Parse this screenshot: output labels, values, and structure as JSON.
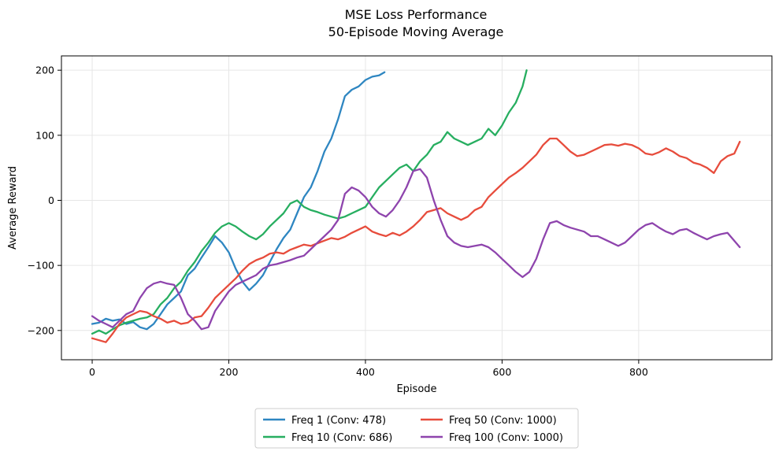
{
  "chart_data": {
    "type": "line",
    "title": "MSE Loss Performance",
    "subtitle": "50-Episode Moving Average",
    "xlabel": "Episode",
    "ylabel": "Average Reward",
    "xlim": [
      -45,
      995
    ],
    "ylim": [
      -245,
      222
    ],
    "xticks": [
      0,
      200,
      400,
      600,
      800
    ],
    "yticks": [
      -200,
      -100,
      0,
      100,
      200
    ],
    "xtick_labels": [
      "0",
      "200",
      "400",
      "600",
      "800"
    ],
    "ytick_labels": [
      "−200",
      "−100",
      "0",
      "100",
      "200"
    ],
    "grid": true,
    "legend_position": "bottom-center",
    "series": [
      {
        "name": "Freq 1 (Conv: 478)",
        "color": "#2e86c1",
        "points": [
          [
            0,
            -190
          ],
          [
            10,
            -188
          ],
          [
            20,
            -182
          ],
          [
            30,
            -185
          ],
          [
            40,
            -183
          ],
          [
            50,
            -190
          ],
          [
            60,
            -187
          ],
          [
            70,
            -195
          ],
          [
            80,
            -198
          ],
          [
            90,
            -190
          ],
          [
            100,
            -175
          ],
          [
            110,
            -160
          ],
          [
            120,
            -150
          ],
          [
            130,
            -140
          ],
          [
            140,
            -115
          ],
          [
            150,
            -105
          ],
          [
            160,
            -88
          ],
          [
            170,
            -72
          ],
          [
            180,
            -55
          ],
          [
            190,
            -65
          ],
          [
            200,
            -80
          ],
          [
            210,
            -105
          ],
          [
            220,
            -125
          ],
          [
            230,
            -138
          ],
          [
            240,
            -128
          ],
          [
            250,
            -115
          ],
          [
            260,
            -95
          ],
          [
            270,
            -75
          ],
          [
            280,
            -58
          ],
          [
            290,
            -45
          ],
          [
            300,
            -20
          ],
          [
            310,
            5
          ],
          [
            320,
            20
          ],
          [
            330,
            45
          ],
          [
            340,
            75
          ],
          [
            350,
            95
          ],
          [
            360,
            125
          ],
          [
            370,
            160
          ],
          [
            380,
            170
          ],
          [
            390,
            175
          ],
          [
            400,
            185
          ],
          [
            410,
            190
          ],
          [
            420,
            192
          ],
          [
            428,
            197
          ]
        ]
      },
      {
        "name": "Freq 10 (Conv: 686)",
        "color": "#27ae60",
        "points": [
          [
            0,
            -205
          ],
          [
            10,
            -200
          ],
          [
            20,
            -205
          ],
          [
            30,
            -198
          ],
          [
            40,
            -192
          ],
          [
            50,
            -188
          ],
          [
            60,
            -185
          ],
          [
            70,
            -182
          ],
          [
            80,
            -180
          ],
          [
            90,
            -175
          ],
          [
            100,
            -160
          ],
          [
            110,
            -150
          ],
          [
            120,
            -135
          ],
          [
            130,
            -125
          ],
          [
            140,
            -108
          ],
          [
            150,
            -95
          ],
          [
            160,
            -78
          ],
          [
            170,
            -65
          ],
          [
            180,
            -50
          ],
          [
            190,
            -40
          ],
          [
            200,
            -35
          ],
          [
            210,
            -40
          ],
          [
            220,
            -48
          ],
          [
            230,
            -55
          ],
          [
            240,
            -60
          ],
          [
            250,
            -52
          ],
          [
            260,
            -40
          ],
          [
            270,
            -30
          ],
          [
            280,
            -20
          ],
          [
            290,
            -5
          ],
          [
            300,
            0
          ],
          [
            310,
            -10
          ],
          [
            320,
            -15
          ],
          [
            330,
            -18
          ],
          [
            340,
            -22
          ],
          [
            350,
            -25
          ],
          [
            360,
            -28
          ],
          [
            370,
            -25
          ],
          [
            380,
            -20
          ],
          [
            390,
            -15
          ],
          [
            400,
            -10
          ],
          [
            410,
            5
          ],
          [
            420,
            20
          ],
          [
            430,
            30
          ],
          [
            440,
            40
          ],
          [
            450,
            50
          ],
          [
            460,
            55
          ],
          [
            470,
            45
          ],
          [
            480,
            60
          ],
          [
            490,
            70
          ],
          [
            500,
            85
          ],
          [
            510,
            90
          ],
          [
            520,
            105
          ],
          [
            530,
            95
          ],
          [
            540,
            90
          ],
          [
            550,
            85
          ],
          [
            560,
            90
          ],
          [
            570,
            95
          ],
          [
            580,
            110
          ],
          [
            590,
            100
          ],
          [
            600,
            115
          ],
          [
            610,
            135
          ],
          [
            620,
            150
          ],
          [
            630,
            175
          ],
          [
            636,
            200
          ]
        ]
      },
      {
        "name": "Freq 50 (Conv: 1000)",
        "color": "#e74c3c",
        "points": [
          [
            0,
            -212
          ],
          [
            10,
            -215
          ],
          [
            20,
            -218
          ],
          [
            30,
            -205
          ],
          [
            40,
            -190
          ],
          [
            50,
            -180
          ],
          [
            60,
            -175
          ],
          [
            70,
            -170
          ],
          [
            80,
            -172
          ],
          [
            90,
            -178
          ],
          [
            100,
            -182
          ],
          [
            110,
            -188
          ],
          [
            120,
            -185
          ],
          [
            130,
            -190
          ],
          [
            140,
            -188
          ],
          [
            150,
            -180
          ],
          [
            160,
            -178
          ],
          [
            170,
            -165
          ],
          [
            180,
            -150
          ],
          [
            190,
            -140
          ],
          [
            200,
            -130
          ],
          [
            210,
            -120
          ],
          [
            220,
            -108
          ],
          [
            230,
            -98
          ],
          [
            240,
            -92
          ],
          [
            250,
            -88
          ],
          [
            260,
            -82
          ],
          [
            270,
            -80
          ],
          [
            280,
            -82
          ],
          [
            290,
            -76
          ],
          [
            300,
            -72
          ],
          [
            310,
            -68
          ],
          [
            320,
            -70
          ],
          [
            330,
            -66
          ],
          [
            340,
            -62
          ],
          [
            350,
            -58
          ],
          [
            360,
            -60
          ],
          [
            370,
            -56
          ],
          [
            380,
            -50
          ],
          [
            390,
            -45
          ],
          [
            400,
            -40
          ],
          [
            410,
            -48
          ],
          [
            420,
            -52
          ],
          [
            430,
            -55
          ],
          [
            440,
            -50
          ],
          [
            450,
            -54
          ],
          [
            460,
            -48
          ],
          [
            470,
            -40
          ],
          [
            480,
            -30
          ],
          [
            490,
            -18
          ],
          [
            500,
            -15
          ],
          [
            510,
            -12
          ],
          [
            520,
            -20
          ],
          [
            530,
            -25
          ],
          [
            540,
            -30
          ],
          [
            550,
            -25
          ],
          [
            560,
            -15
          ],
          [
            570,
            -10
          ],
          [
            580,
            5
          ],
          [
            590,
            15
          ],
          [
            600,
            25
          ],
          [
            610,
            35
          ],
          [
            620,
            42
          ],
          [
            630,
            50
          ],
          [
            640,
            60
          ],
          [
            650,
            70
          ],
          [
            660,
            85
          ],
          [
            670,
            95
          ],
          [
            680,
            95
          ],
          [
            690,
            85
          ],
          [
            700,
            75
          ],
          [
            710,
            68
          ],
          [
            720,
            70
          ],
          [
            730,
            75
          ],
          [
            740,
            80
          ],
          [
            750,
            85
          ],
          [
            760,
            86
          ],
          [
            770,
            84
          ],
          [
            780,
            87
          ],
          [
            790,
            85
          ],
          [
            800,
            80
          ],
          [
            810,
            72
          ],
          [
            820,
            70
          ],
          [
            830,
            74
          ],
          [
            840,
            80
          ],
          [
            850,
            75
          ],
          [
            860,
            68
          ],
          [
            870,
            65
          ],
          [
            880,
            58
          ],
          [
            890,
            55
          ],
          [
            900,
            50
          ],
          [
            910,
            42
          ],
          [
            920,
            60
          ],
          [
            930,
            68
          ],
          [
            940,
            72
          ],
          [
            948,
            90
          ]
        ]
      },
      {
        "name": "Freq 100 (Conv: 1000)",
        "color": "#8e44ad",
        "points": [
          [
            0,
            -178
          ],
          [
            10,
            -185
          ],
          [
            20,
            -190
          ],
          [
            30,
            -195
          ],
          [
            40,
            -185
          ],
          [
            50,
            -175
          ],
          [
            60,
            -170
          ],
          [
            70,
            -150
          ],
          [
            80,
            -135
          ],
          [
            90,
            -128
          ],
          [
            100,
            -125
          ],
          [
            110,
            -128
          ],
          [
            120,
            -130
          ],
          [
            130,
            -150
          ],
          [
            140,
            -175
          ],
          [
            150,
            -185
          ],
          [
            160,
            -198
          ],
          [
            170,
            -195
          ],
          [
            180,
            -170
          ],
          [
            190,
            -155
          ],
          [
            200,
            -140
          ],
          [
            210,
            -130
          ],
          [
            220,
            -125
          ],
          [
            230,
            -120
          ],
          [
            240,
            -115
          ],
          [
            250,
            -105
          ],
          [
            260,
            -100
          ],
          [
            270,
            -98
          ],
          [
            280,
            -95
          ],
          [
            290,
            -92
          ],
          [
            300,
            -88
          ],
          [
            310,
            -85
          ],
          [
            320,
            -75
          ],
          [
            330,
            -65
          ],
          [
            340,
            -55
          ],
          [
            350,
            -45
          ],
          [
            360,
            -30
          ],
          [
            370,
            10
          ],
          [
            380,
            20
          ],
          [
            390,
            15
          ],
          [
            400,
            5
          ],
          [
            410,
            -10
          ],
          [
            420,
            -20
          ],
          [
            430,
            -25
          ],
          [
            440,
            -15
          ],
          [
            450,
            0
          ],
          [
            460,
            20
          ],
          [
            470,
            45
          ],
          [
            480,
            48
          ],
          [
            490,
            35
          ],
          [
            500,
            0
          ],
          [
            510,
            -30
          ],
          [
            520,
            -55
          ],
          [
            530,
            -65
          ],
          [
            540,
            -70
          ],
          [
            550,
            -72
          ],
          [
            560,
            -70
          ],
          [
            570,
            -68
          ],
          [
            580,
            -72
          ],
          [
            590,
            -80
          ],
          [
            600,
            -90
          ],
          [
            610,
            -100
          ],
          [
            620,
            -110
          ],
          [
            630,
            -118
          ],
          [
            640,
            -110
          ],
          [
            650,
            -90
          ],
          [
            660,
            -60
          ],
          [
            670,
            -35
          ],
          [
            680,
            -32
          ],
          [
            690,
            -38
          ],
          [
            700,
            -42
          ],
          [
            710,
            -45
          ],
          [
            720,
            -48
          ],
          [
            730,
            -55
          ],
          [
            740,
            -55
          ],
          [
            750,
            -60
          ],
          [
            760,
            -65
          ],
          [
            770,
            -70
          ],
          [
            780,
            -65
          ],
          [
            790,
            -55
          ],
          [
            800,
            -45
          ],
          [
            810,
            -38
          ],
          [
            820,
            -35
          ],
          [
            830,
            -42
          ],
          [
            840,
            -48
          ],
          [
            850,
            -52
          ],
          [
            860,
            -46
          ],
          [
            870,
            -44
          ],
          [
            880,
            -50
          ],
          [
            890,
            -55
          ],
          [
            900,
            -60
          ],
          [
            910,
            -55
          ],
          [
            920,
            -52
          ],
          [
            930,
            -50
          ],
          [
            948,
            -72
          ]
        ]
      }
    ]
  }
}
